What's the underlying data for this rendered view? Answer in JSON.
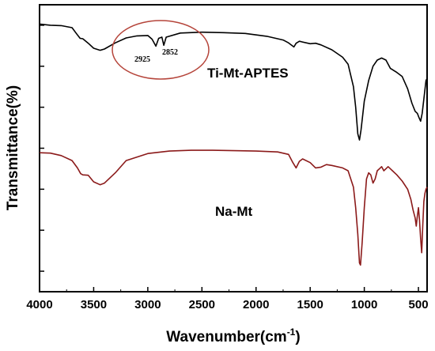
{
  "chart_data": {
    "type": "line",
    "xlabel": "Wavenumber(cm",
    "xlabel_sup": "-1",
    "xlabel_end": ")",
    "ylabel": "Transmittance(%)",
    "xlim": [
      4000,
      420
    ],
    "x_reversed": true,
    "x_ticks": [
      4000,
      3500,
      3000,
      2500,
      2000,
      1500,
      1000,
      500
    ],
    "y_ticks_labeled": false,
    "grid": false,
    "legend": "none",
    "colors": {
      "Ti-Mt-APTES": "#000000",
      "Na-Mt": "#8b1a1a",
      "annotation": "#b5443a"
    },
    "annotations": {
      "peak_labels": [
        "2925",
        "2852"
      ],
      "highlight": "circle around 2925 and 2852 peaks"
    },
    "series": [
      {
        "name": "Ti-Mt-APTES",
        "offset_label": "Ti-Mt-APTES",
        "x": [
          4000,
          3900,
          3800,
          3700,
          3660,
          3625,
          3600,
          3550,
          3500,
          3440,
          3400,
          3300,
          3200,
          3100,
          3000,
          2960,
          2925,
          2900,
          2870,
          2852,
          2830,
          2700,
          2500,
          2300,
          2100,
          1900,
          1750,
          1700,
          1650,
          1630,
          1600,
          1500,
          1450,
          1400,
          1300,
          1200,
          1150,
          1100,
          1080,
          1060,
          1045,
          1030,
          1000,
          960,
          920,
          880,
          840,
          800,
          760,
          700,
          650,
          600,
          560,
          530,
          510,
          495,
          480,
          465,
          450,
          430,
          420
        ],
        "y": [
          90.3,
          90.0,
          89.9,
          89.4,
          88.0,
          86.8,
          86.7,
          85.6,
          84.4,
          83.9,
          84.2,
          85.7,
          86.9,
          87.4,
          87.5,
          86.6,
          84.9,
          86.8,
          87.1,
          85.1,
          87.1,
          88.1,
          88.3,
          88.2,
          88.0,
          87.3,
          86.4,
          85.7,
          84.7,
          85.6,
          86.1,
          85.5,
          85.6,
          85.2,
          84.0,
          82.2,
          80.5,
          75.0,
          70.0,
          63.5,
          62.0,
          64.5,
          71.5,
          76.5,
          80.0,
          81.5,
          82.0,
          81.5,
          79.5,
          78.5,
          77.5,
          74.5,
          71.0,
          69.0,
          68.5,
          67.5,
          66.6,
          68.5,
          72.0,
          76.5,
          77.0
        ]
      },
      {
        "name": "Na-Mt",
        "offset_label": "Na-Mt",
        "x": [
          4000,
          3900,
          3800,
          3700,
          3650,
          3620,
          3600,
          3550,
          3500,
          3440,
          3400,
          3300,
          3200,
          3000,
          2800,
          2600,
          2400,
          2200,
          2000,
          1800,
          1700,
          1660,
          1630,
          1600,
          1570,
          1500,
          1450,
          1400,
          1350,
          1300,
          1200,
          1150,
          1100,
          1080,
          1060,
          1045,
          1035,
          1020,
          1000,
          980,
          960,
          940,
          920,
          900,
          880,
          860,
          840,
          820,
          800,
          780,
          760,
          740,
          700,
          650,
          600,
          570,
          550,
          530,
          520,
          510,
          500,
          490,
          480,
          470,
          460,
          450,
          440,
          430,
          420
        ],
        "y": [
          58.9,
          58.8,
          58.2,
          57.0,
          55.2,
          53.8,
          53.5,
          53.4,
          51.8,
          51.1,
          51.5,
          54.0,
          57.0,
          58.7,
          59.3,
          59.5,
          59.5,
          59.4,
          59.3,
          59.1,
          58.5,
          56.5,
          55.2,
          56.8,
          57.4,
          56.5,
          55.2,
          55.4,
          56.0,
          55.8,
          55.2,
          54.5,
          50.5,
          45.5,
          39.0,
          32.0,
          31.5,
          37.0,
          45.5,
          52.5,
          54.0,
          53.5,
          51.5,
          52.5,
          54.5,
          55.0,
          55.5,
          54.5,
          55.0,
          55.5,
          55.0,
          54.5,
          53.5,
          52.0,
          50.0,
          47.5,
          45.0,
          43.0,
          41.0,
          43.5,
          45.5,
          42.5,
          38.0,
          34.5,
          41.0,
          47.0,
          49.0,
          50.0,
          50.5
        ]
      }
    ]
  }
}
